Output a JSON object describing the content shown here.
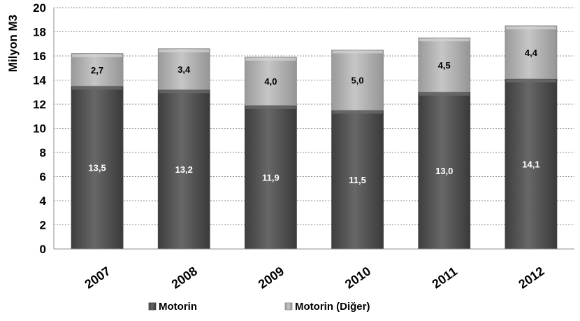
{
  "chart_data": {
    "type": "bar",
    "stacked": true,
    "title": "",
    "xlabel": "",
    "ylabel": "Milyon M3",
    "categories": [
      "2007",
      "2008",
      "2009",
      "2010",
      "2011",
      "2012"
    ],
    "series": [
      {
        "name": "Motorin",
        "values": [
          13.5,
          13.2,
          11.9,
          11.5,
          13.0,
          14.1
        ],
        "labels": [
          "13,5",
          "13,2",
          "11,9",
          "11,5",
          "13,0",
          "14,1"
        ],
        "color": "#555555"
      },
      {
        "name": "Motorin (Diğer)",
        "values": [
          2.7,
          3.4,
          4.0,
          5.0,
          4.5,
          4.4
        ],
        "labels": [
          "2,7",
          "3,4",
          "4,0",
          "5,0",
          "4,5",
          "4,4"
        ],
        "color": "#b3b3b3"
      }
    ],
    "ylim": [
      0,
      20
    ],
    "yticks": [
      "0",
      "2",
      "4",
      "6",
      "8",
      "10",
      "12",
      "14",
      "16",
      "18",
      "20"
    ],
    "grid": true,
    "legend_position": "bottom"
  }
}
